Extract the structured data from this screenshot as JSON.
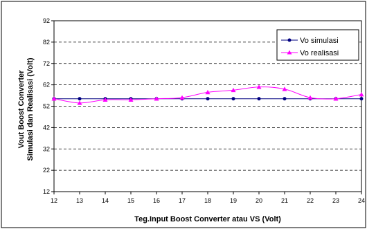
{
  "chart_data": {
    "type": "line",
    "title": "",
    "xlabel": "Teg.Input Boost Converter atau VS (Volt)",
    "ylabel_line1": "Vout Boost Converter",
    "ylabel_line2": "Simulasi  dan Realisasi (Volt)",
    "x": [
      12,
      13,
      14,
      15,
      16,
      17,
      18,
      19,
      20,
      21,
      22,
      23,
      24
    ],
    "xlim": [
      12,
      24
    ],
    "ylim": [
      12,
      92
    ],
    "yticks": [
      12,
      22,
      32,
      42,
      52,
      62,
      72,
      82,
      92
    ],
    "grid": "horizontal-dashed",
    "legend_position": "top-right",
    "series": [
      {
        "name": "Vo simulasi",
        "color": "#000080",
        "marker": "circle",
        "values": [
          55.5,
          55.5,
          55.5,
          55.5,
          55.5,
          55.5,
          55.5,
          55.5,
          55.5,
          55.5,
          55.5,
          55.5,
          55.5
        ]
      },
      {
        "name": "Vo realisasi",
        "color": "#ff00ff",
        "marker": "triangle",
        "values": [
          55.5,
          53.5,
          55,
          55,
          55.5,
          56,
          58.5,
          59.5,
          61,
          60,
          56,
          55.5,
          57.5
        ]
      }
    ]
  }
}
